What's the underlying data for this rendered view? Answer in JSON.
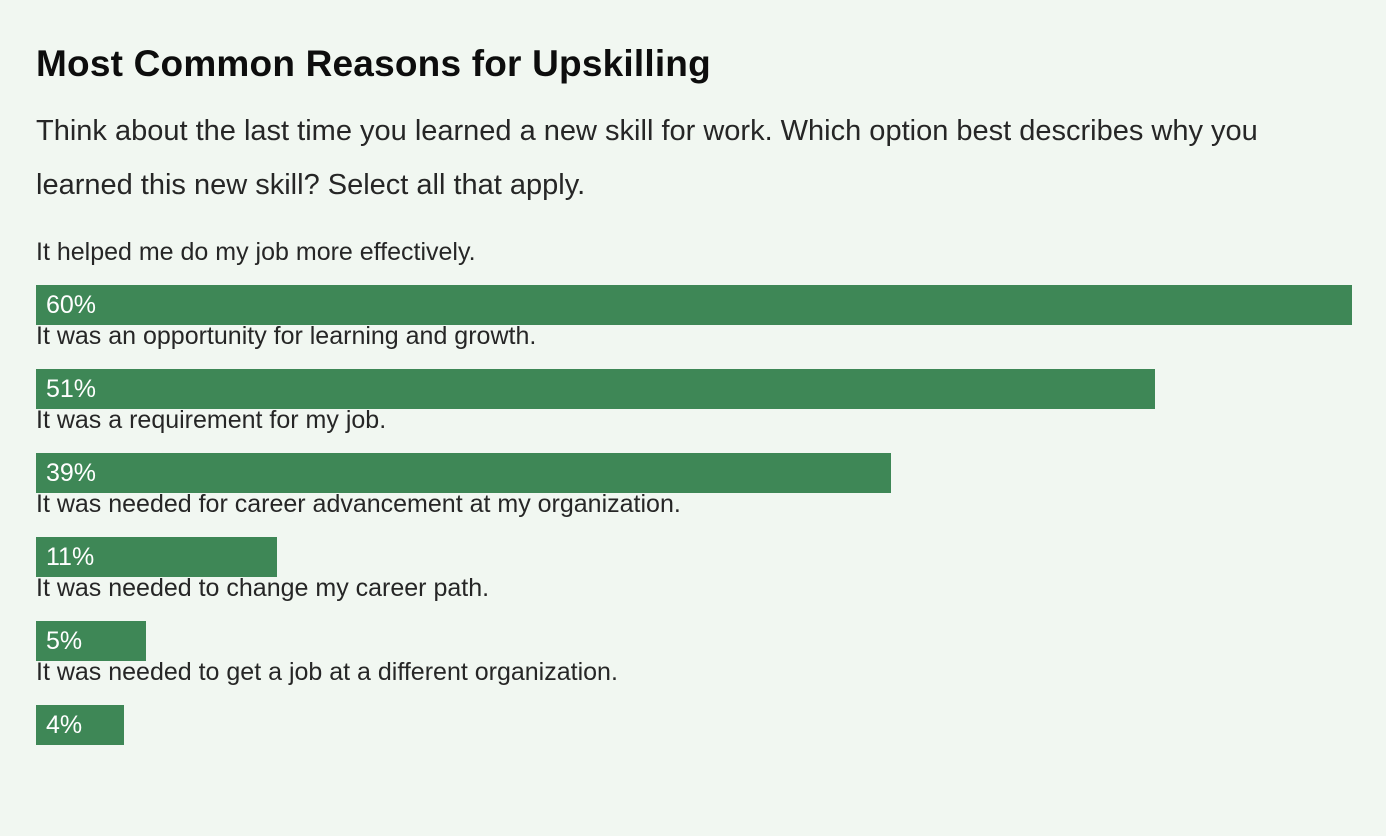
{
  "chart_data": {
    "type": "bar",
    "orientation": "horizontal",
    "title": "Most Common Reasons for Upskilling",
    "subtitle": "Think about the last time you learned a new skill for work. Which option best describes why you learned this new skill? Select all that apply.",
    "categories": [
      "It helped me do my job more effectively.",
      "It was an opportunity for learning and growth.",
      "It was a requirement for my job.",
      "It was needed for career advancement at my organization.",
      "It was needed to change my career path.",
      "It was needed to get a job at a different organization."
    ],
    "values": [
      60,
      51,
      39,
      11,
      5,
      4
    ],
    "value_labels": [
      "60%",
      "51%",
      "39%",
      "11%",
      "5%",
      "4%"
    ],
    "unit": "%",
    "xlim": [
      0,
      60
    ],
    "grid": false,
    "bar_color": "#3e8756",
    "value_label_color": "#ffffff",
    "background_color": "#f1f7f1"
  }
}
